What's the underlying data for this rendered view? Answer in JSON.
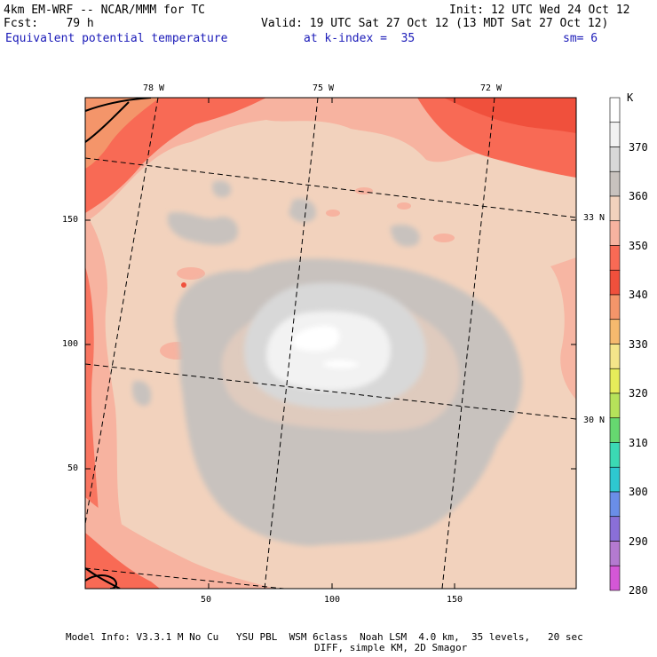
{
  "header": {
    "model_line": "4km EM-WRF -- NCAR/MMM for TC",
    "init_line": "Init: 12 UTC Wed 24 Oct 12",
    "fcst_line": "Fcst:    79 h",
    "valid_line": "Valid: 19 UTC Sat 27 Oct 12 (13 MDT Sat 27 Oct 12)",
    "field_name": "Equivalent potential temperature",
    "level_text": "at k-index =  35",
    "smooth_text": "sm= 6"
  },
  "axes": {
    "x_ticks": [
      "50",
      "100",
      "150"
    ],
    "y_ticks": [
      "50",
      "100",
      "150"
    ],
    "lon_labels": [
      "78 W",
      "75 W",
      "72 W"
    ],
    "lat_labels": [
      "33 N",
      "30 N"
    ]
  },
  "colorbar": {
    "unit": "K",
    "labels": [
      "370",
      "360",
      "350",
      "340",
      "330",
      "320",
      "310",
      "300",
      "290",
      "280"
    ],
    "colors": {
      "375": "#ffffff",
      "370": "#f2f2f2",
      "365": "#d8d8d8",
      "360": "#c8c2be",
      "355": "#f2d2bd",
      "350": "#f7b3a0",
      "345": "#f86a55",
      "340": "#f0503c",
      "335": "#f4956a",
      "330": "#f5b96e",
      "325": "#f4e58a",
      "320": "#e6ec5a",
      "315": "#b6e25a",
      "310": "#66d870",
      "305": "#3bd9b4",
      "300": "#2ec8d0",
      "295": "#6a8ee8",
      "290": "#8a6fd8",
      "285": "#b47ad0",
      "280": "#d457d6"
    }
  },
  "footer": {
    "line1": "Model Info: V3.3.1 M No Cu   YSU PBL  WSM 6class  Noah LSM  4.0 km,  35 levels,   20 sec",
    "line2": "DIFF, simple KM, 2D Smagor"
  }
}
